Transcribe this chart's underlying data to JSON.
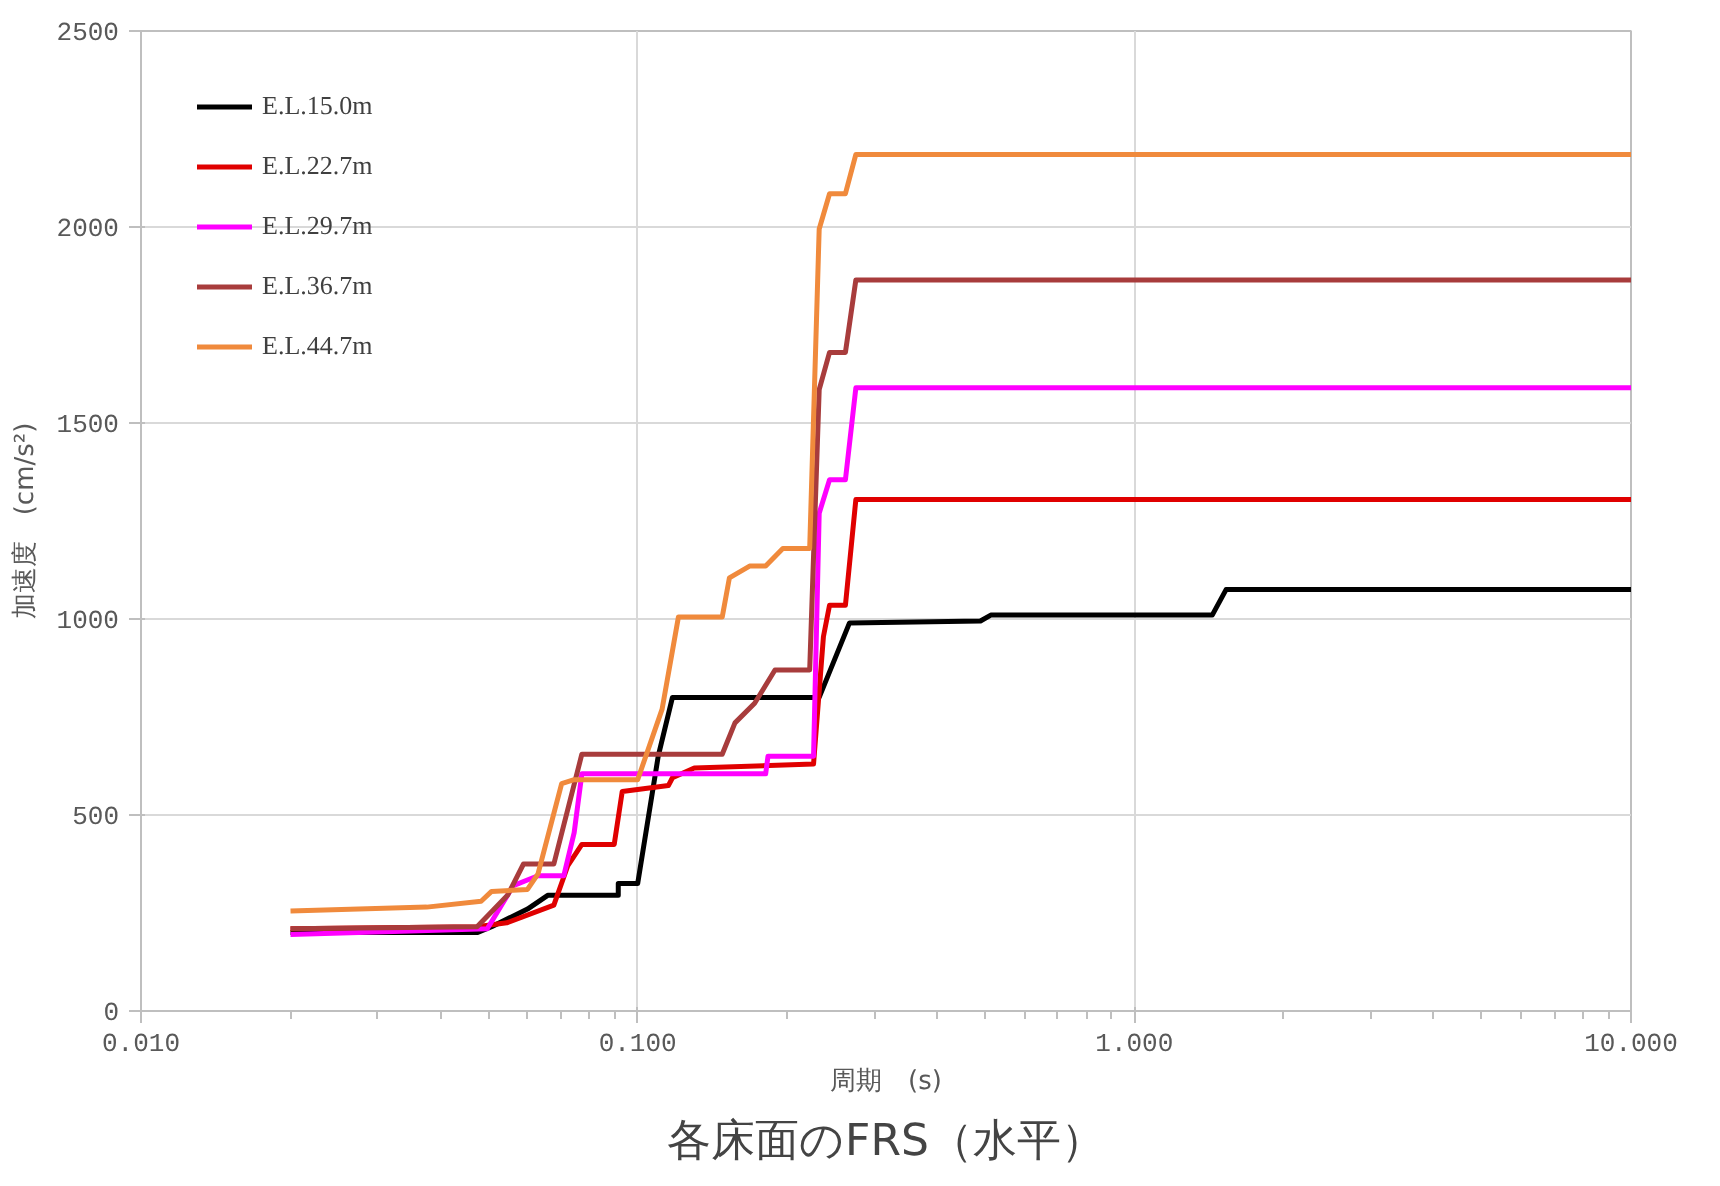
{
  "chart_data": {
    "type": "line",
    "title": "各床面のFRS（水平）",
    "xlabel": "周期　(s)",
    "ylabel": "加速度　(cm/s²)",
    "log": "x",
    "xlim": [
      0.01,
      10
    ],
    "ylim": [
      0,
      2500
    ],
    "xticks": [
      {
        "value": 0.01,
        "label": "0.010"
      },
      {
        "value": 0.1,
        "label": "0.100"
      },
      {
        "value": 1,
        "label": "1.000"
      },
      {
        "value": 10,
        "label": "10.000"
      }
    ],
    "yticks": [
      0,
      500,
      1000,
      1500,
      2000,
      2500
    ],
    "grid": true,
    "legend": "top left",
    "marker": "none",
    "line_style": "solid",
    "series": [
      {
        "name": "E.L.15.0m",
        "color": "#000000",
        "x": [
          0.02,
          0.0475,
          0.0508,
          0.0557,
          0.06,
          0.0659,
          0.069,
          0.0914,
          0.0914,
          0.1,
          0.11,
          0.1175,
          0.232,
          0.232,
          0.267,
          0.49,
          0.514,
          1.435,
          1.53,
          10
        ],
        "values": [
          200,
          200,
          215,
          240,
          260,
          295,
          295,
          295,
          325,
          325,
          650,
          800,
          800,
          800,
          990,
          995,
          1010,
          1010,
          1075,
          1075
        ]
      },
      {
        "name": "E.L.22.7m",
        "color": "#e00000",
        "x": [
          0.02,
          0.0475,
          0.0545,
          0.0678,
          0.0723,
          0.0772,
          0.0897,
          0.0931,
          0.1153,
          0.1175,
          0.13,
          0.226,
          0.2366,
          0.2434,
          0.262,
          0.275,
          10
        ],
        "values": [
          210,
          215,
          225,
          270,
          370,
          425,
          425,
          560,
          575,
          595,
          620,
          630,
          955,
          1035,
          1035,
          1305,
          1305
        ]
      },
      {
        "name": "E.L.29.7m",
        "color": "#ff00ff",
        "x": [
          0.02,
          0.0498,
          0.0562,
          0.063,
          0.071,
          0.0745,
          0.0772,
          0.181,
          0.183,
          0.226,
          0.232,
          0.2434,
          0.262,
          0.275,
          10
        ],
        "values": [
          195,
          210,
          320,
          345,
          345,
          455,
          605,
          605,
          650,
          650,
          1270,
          1355,
          1355,
          1590,
          1590
        ]
      },
      {
        "name": "E.L.36.7m",
        "color": "#a83c3c",
        "x": [
          0.02,
          0.0475,
          0.0547,
          0.0589,
          0.0678,
          0.0772,
          0.148,
          0.157,
          0.172,
          0.189,
          0.222,
          0.232,
          0.2434,
          0.262,
          0.275,
          10
        ],
        "values": [
          210,
          215,
          295,
          375,
          375,
          655,
          655,
          735,
          785,
          870,
          870,
          1585,
          1680,
          1680,
          1865,
          1865
        ]
      },
      {
        "name": "E.L.44.7m",
        "color": "#f08a3c",
        "x": [
          0.02,
          0.0376,
          0.0484,
          0.0508,
          0.06,
          0.063,
          0.0703,
          0.0745,
          0.1,
          0.112,
          0.1208,
          0.148,
          0.153,
          0.168,
          0.181,
          0.196,
          0.222,
          0.232,
          0.2434,
          0.262,
          0.275,
          10
        ],
        "values": [
          255,
          265,
          280,
          305,
          310,
          350,
          580,
          590,
          590,
          770,
          1005,
          1005,
          1105,
          1135,
          1135,
          1180,
          1180,
          1995,
          2085,
          2085,
          2185,
          2185
        ]
      }
    ]
  }
}
